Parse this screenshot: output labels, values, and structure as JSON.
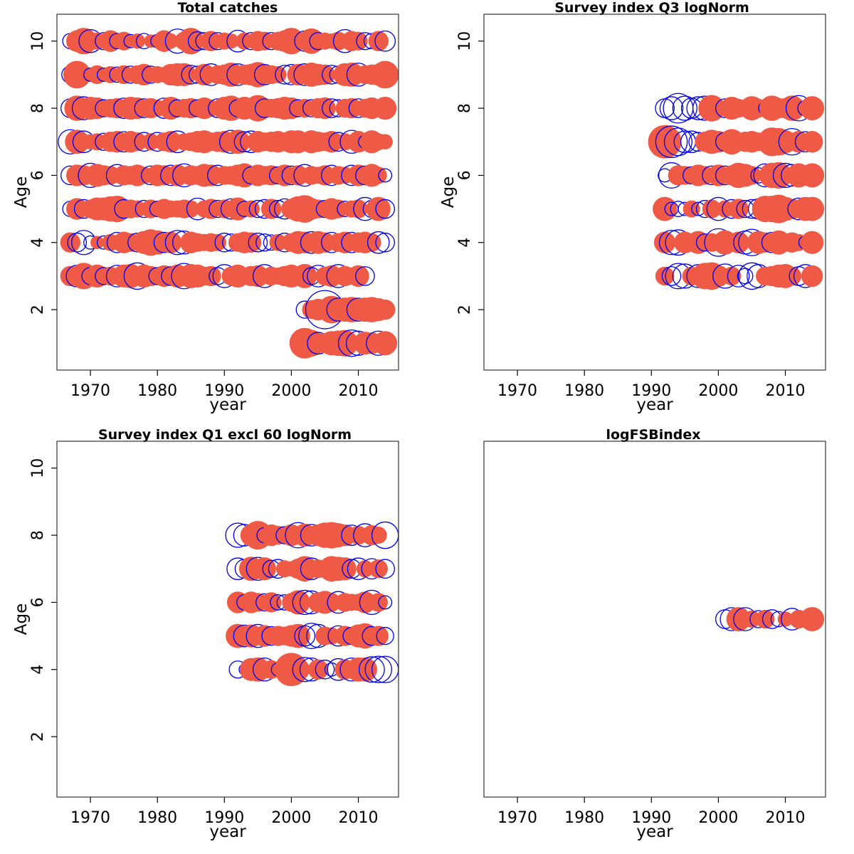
{
  "colors": {
    "positive": "#ee5a45",
    "negative": "#0000ee"
  },
  "chart_data": [
    {
      "type": "scatter",
      "title": "Total catches",
      "xlabel": "year",
      "ylabel": "Age",
      "xlim": [
        1965,
        2016
      ],
      "ylim": [
        0.2,
        10.8
      ],
      "x_ticks": [
        1970,
        1980,
        1990,
        2000,
        2010
      ],
      "y_ticks": [
        2,
        4,
        6,
        8,
        10
      ],
      "show_ylabel": true,
      "bubbles": {
        "10": [
          -0.4,
          0.8,
          1.2,
          -0.9,
          0.5,
          -0.5,
          0.8,
          -0.4,
          0.6,
          -0.3,
          0.4,
          -0.4,
          0.3,
          -0.3,
          0.8,
          0.4,
          -1.0,
          0.6,
          1.2,
          -0.6,
          -0.5,
          0.7,
          -0.5,
          0.5,
          0.4,
          -0.8,
          0.5,
          -0.5,
          0.7,
          0.6,
          -0.5,
          0.6,
          0.8,
          1.2,
          0.6,
          -0.7,
          1.1,
          -0.5,
          0.5,
          0.4,
          0.6,
          -0.9,
          0.7,
          0.6,
          -0.5,
          -0.4,
          0.7,
          -0.7
        ],
        "9": [
          -0.5,
          1.3,
          0.5,
          -0.3,
          0.6,
          -0.3,
          0.5,
          -0.4,
          0.6,
          -0.5,
          0.6,
          0.8,
          -0.5,
          0.5,
          0.4,
          0.8,
          0.9,
          0.9,
          -0.6,
          -0.5,
          0.8,
          -0.8,
          0.6,
          0.7,
          1.0,
          -0.8,
          0.7,
          0.8,
          1.1,
          -0.7,
          0.6,
          0.5,
          -0.6,
          -0.7,
          0.8,
          -0.8,
          1.0,
          0.8,
          0.7,
          -0.6,
          -0.5,
          0.9,
          1.0,
          -0.9,
          0.6,
          0.7,
          0.8,
          1.3
        ],
        "8": [
          -0.6,
          1.1,
          -0.9,
          0.9,
          0.8,
          -0.5,
          0.6,
          0.7,
          -0.7,
          0.9,
          0.8,
          -0.6,
          0.7,
          0.5,
          -0.7,
          0.9,
          -0.5,
          0.6,
          0.7,
          -0.5,
          0.8,
          0.5,
          -0.6,
          0.9,
          1.1,
          -0.5,
          0.9,
          0.5,
          1.2,
          -0.6,
          0.6,
          0.7,
          0.9,
          0.8,
          -0.5,
          0.6,
          -0.5,
          0.7,
          0.8,
          -0.6,
          -0.5,
          0.6,
          0.7,
          -0.6,
          0.6,
          0.8,
          0.5,
          0.9
        ],
        "7": [
          -1.0,
          1.0,
          -0.8,
          0.4,
          0.5,
          -0.5,
          0.7,
          0.8,
          -0.7,
          0.8,
          0.6,
          -0.6,
          0.5,
          -0.6,
          0.6,
          0.8,
          -0.8,
          0.5,
          0.6,
          0.8,
          0.9,
          0.6,
          0.7,
          0.8,
          -0.9,
          1.0,
          -0.7,
          -0.8,
          0.8,
          0.6,
          0.7,
          0.8,
          0.6,
          0.9,
          0.9,
          0.5,
          0.9,
          0.7,
          0.6,
          0.8,
          -0.6,
          0.5,
          -0.9,
          0.8,
          -0.3,
          0.9,
          0.5,
          0.4
        ],
        "6": [
          -0.6,
          0.8,
          0.7,
          -1.0,
          0.9,
          0.7,
          0.6,
          -0.8,
          0.7,
          0.6,
          0.8,
          0.5,
          -0.6,
          0.8,
          0.7,
          -0.7,
          0.8,
          -0.9,
          0.7,
          0.6,
          0.9,
          0.8,
          -0.7,
          0.6,
          0.6,
          0.8,
          1.0,
          -0.5,
          0.8,
          0.6,
          0.7,
          -0.5,
          0.8,
          -0.6,
          0.7,
          -0.8,
          0.6,
          0.5,
          0.7,
          -0.7,
          0.6,
          0.5,
          -0.7,
          0.8,
          -0.6,
          0.9,
          0.5,
          -0.3
        ],
        "5": [
          -0.4,
          0.8,
          -0.6,
          0.6,
          0.9,
          0.9,
          1.1,
          1.2,
          -0.6,
          0.6,
          0.5,
          -0.5,
          0.6,
          -0.4,
          0.7,
          0.5,
          0.5,
          0.6,
          0.5,
          -0.8,
          0.5,
          0.7,
          -0.5,
          0.6,
          -0.7,
          0.9,
          -0.4,
          0.5,
          -0.5,
          -0.6,
          0.7,
          -0.5,
          -0.7,
          0.7,
          1.1,
          1.3,
          0.8,
          0.6,
          -0.5,
          0.8,
          0.6,
          -0.4,
          0.5,
          0.6,
          -0.9,
          -0.5,
          1.0,
          -0.6
        ],
        "4": [
          0.7,
          -0.6,
          -1.0,
          -0.3,
          0.3,
          -0.3,
          0.5,
          -0.7,
          0.8,
          0.6,
          -0.6,
          0.9,
          1.2,
          1.0,
          -0.7,
          0.8,
          -1.0,
          -0.9,
          0.8,
          0.6,
          0.5,
          0.6,
          0.5,
          -0.6,
          -0.5,
          0.6,
          0.8,
          0.7,
          -0.6,
          -0.5,
          -0.4,
          0.5,
          -0.6,
          0.6,
          0.9,
          0.8,
          -0.8,
          0.9,
          0.7,
          -0.7,
          0.6,
          0.8,
          -0.7,
          0.7,
          0.8,
          0.6,
          -0.8,
          -0.6
        ],
        "3": [
          0.7,
          -0.8,
          1.2,
          -0.5,
          0.9,
          -0.5,
          0.6,
          -0.8,
          0.9,
          1.0,
          -1.2,
          0.9,
          0.7,
          -0.5,
          0.8,
          -0.6,
          0.9,
          -1.1,
          1.0,
          0.9,
          0.6,
          0.7,
          -0.5,
          -0.9,
          0.6,
          0.9,
          0.5,
          0.7,
          0.8,
          -0.9,
          0.6,
          0.5,
          0.7,
          0.9,
          0.6,
          1.0,
          -0.5,
          -0.8,
          0.6,
          0.8,
          -0.9,
          0.7,
          0.5,
          0.8,
          -0.6
        ]
      },
      "recent": {
        "2": {
          "years": [
            2002,
            2003,
            2004,
            2005,
            2006,
            2007,
            2008,
            2009,
            2010,
            2011,
            2012,
            2013,
            2014
          ],
          "values": [
            -0.5,
            0.6,
            0.8,
            -2.5,
            1.3,
            -0.9,
            1.0,
            1.1,
            -0.9,
            1.0,
            1.1,
            0.9,
            0.7
          ]
        },
        "1": {
          "years": [
            2002,
            2003,
            2004,
            2005,
            2006,
            2007,
            2008,
            2009,
            2010,
            2011,
            2012,
            2013,
            2014
          ],
          "values": [
            1.6,
            1.2,
            -0.8,
            0.7,
            1.0,
            1.1,
            1.2,
            -1.2,
            -1.0,
            0.9,
            0.8,
            -1.0,
            1.0
          ]
        }
      }
    },
    {
      "type": "scatter",
      "title": "Survey index Q3 logNorm",
      "xlabel": "year",
      "ylabel": "Age",
      "xlim": [
        1965,
        2016
      ],
      "ylim": [
        0.2,
        10.8
      ],
      "x_ticks": [
        1970,
        1980,
        1990,
        2000,
        2010
      ],
      "y_ticks": [
        2,
        4,
        6,
        8,
        10
      ],
      "show_ylabel": true,
      "start_year": 1992,
      "bubbles": {
        "8": [
          -0.6,
          -0.9,
          -1.5,
          -1.0,
          -0.7,
          -0.9,
          -1.0,
          1.2,
          0.5,
          -0.6,
          0.9,
          0.6,
          0.5,
          1.0,
          0.6,
          -0.3,
          1.1,
          0.7,
          0.7,
          1.1,
          -1.1,
          -0.4,
          1.0
        ],
        "7": [
          1.9,
          -1.7,
          -1.3,
          -0.8,
          -0.8,
          -0.6,
          0.7,
          1.0,
          0.8,
          -0.6,
          1.1,
          0.5,
          0.7,
          0.8,
          0.6,
          -0.3,
          1.4,
          1.3,
          0.9,
          -1.2,
          0.8,
          -0.7,
          0.8
        ],
        "6": [
          -0.3,
          -1.1,
          0.7,
          0.6,
          -0.5,
          0.8,
          0.6,
          -0.6,
          0.8,
          -0.6,
          0.7,
          1.1,
          0.9,
          0.6,
          -0.4,
          -0.9,
          1.1,
          1.2,
          -1.0,
          -0.8,
          1.0,
          0.6,
          1.0
        ],
        "5": [
          1.0,
          -0.3,
          -0.4,
          -0.3,
          0.5,
          -0.3,
          -0.5,
          0.6,
          -0.9,
          0.5,
          -0.6,
          0.7,
          -0.5,
          -0.6,
          -0.7,
          1.2,
          1.2,
          1.4,
          1.0,
          0.7,
          -0.8,
          1.0,
          1.0
        ],
        "4": [
          0.8,
          -1.0,
          -1.1,
          0.8,
          0.6,
          0.9,
          -0.5,
          0.6,
          -1.3,
          1.0,
          0.6,
          0.8,
          -0.9,
          -1.2,
          0.9,
          0.7,
          -0.7,
          1.0,
          0.6,
          0.7,
          0.5,
          -0.3,
          0.9
        ],
        "3": [
          0.6,
          -0.6,
          -1.1,
          -1.0,
          0.6,
          -0.9,
          1.2,
          1.3,
          0.8,
          -1.0,
          0.6,
          -0.8,
          -0.4,
          -1.2,
          -0.9,
          0.6,
          0.7,
          0.9,
          1.0,
          0.6,
          -0.6,
          -0.9,
          0.8
        ]
      }
    },
    {
      "type": "scatter",
      "title": "Survey index Q1 excl 60 logNorm",
      "xlabel": "year",
      "ylabel": "Age",
      "xlim": [
        1965,
        2016
      ],
      "ylim": [
        0.2,
        10.8
      ],
      "x_ticks": [
        1970,
        1980,
        1990,
        2000,
        2010
      ],
      "y_ticks": [
        2,
        4,
        6,
        8,
        10
      ],
      "show_ylabel": true,
      "start_year": 1992,
      "bubbles": {
        "8": [
          -1.0,
          -0.8,
          0.8,
          1.4,
          -0.4,
          0.8,
          0.6,
          -0.5,
          0.8,
          -1.1,
          0.9,
          -0.8,
          0.8,
          1.1,
          1.2,
          1.0,
          0.8,
          -0.7,
          0.6,
          -0.9,
          0.7,
          0.5,
          -1.2
        ],
        "7": [
          -0.8,
          -0.6,
          1.0,
          -0.9,
          0.9,
          -0.5,
          -0.6,
          0.5,
          0.4,
          0.7,
          1.1,
          -0.8,
          0.6,
          0.4,
          1.1,
          1.0,
          0.9,
          -0.6,
          -0.8,
          0.5,
          -0.7,
          0.6,
          -0.6
        ],
        "6": [
          0.8,
          -0.4,
          0.8,
          0.6,
          -0.5,
          0.7,
          -0.4,
          -0.4,
          0.6,
          1.0,
          -1.0,
          -0.9,
          0.7,
          0.9,
          0.6,
          -0.8,
          0.6,
          0.5,
          0.5,
          0.8,
          -1.0,
          0.6,
          -0.3
        ],
        "5": [
          1.0,
          -0.8,
          0.9,
          -0.9,
          0.8,
          -0.6,
          0.7,
          0.6,
          0.8,
          1.0,
          -0.7,
          -1.1,
          -0.9,
          0.6,
          0.5,
          -0.7,
          0.7,
          -0.5,
          0.9,
          1.1,
          -0.6,
          0.7,
          -0.5
        ],
        "4": [
          -0.5,
          -0.2,
          0.9,
          1.0,
          -0.9,
          0.6,
          -0.3,
          -0.6,
          1.9,
          0.9,
          -1.0,
          -0.9,
          0.7,
          -0.6,
          -0.3,
          -0.8,
          0.7,
          -0.9,
          1.0,
          1.0,
          -1.1,
          -1.2,
          -1.2
        ]
      }
    },
    {
      "type": "scatter",
      "title": "logFSBindex",
      "xlabel": "year",
      "ylabel": "",
      "xlim": [
        1965,
        2016
      ],
      "ylim": [
        0.2,
        10.8
      ],
      "x_ticks": [
        1970,
        1980,
        1990,
        2000,
        2010
      ],
      "y_ticks": [],
      "show_ylabel": false,
      "start_year": 2001,
      "bubbles": {
        "5.5": [
          -0.6,
          -0.9,
          1.0,
          -0.9,
          0.5,
          -0.5,
          0.6,
          -0.6,
          -0.4,
          0.4,
          -0.8,
          0.6,
          0.5,
          1.0
        ]
      }
    }
  ]
}
